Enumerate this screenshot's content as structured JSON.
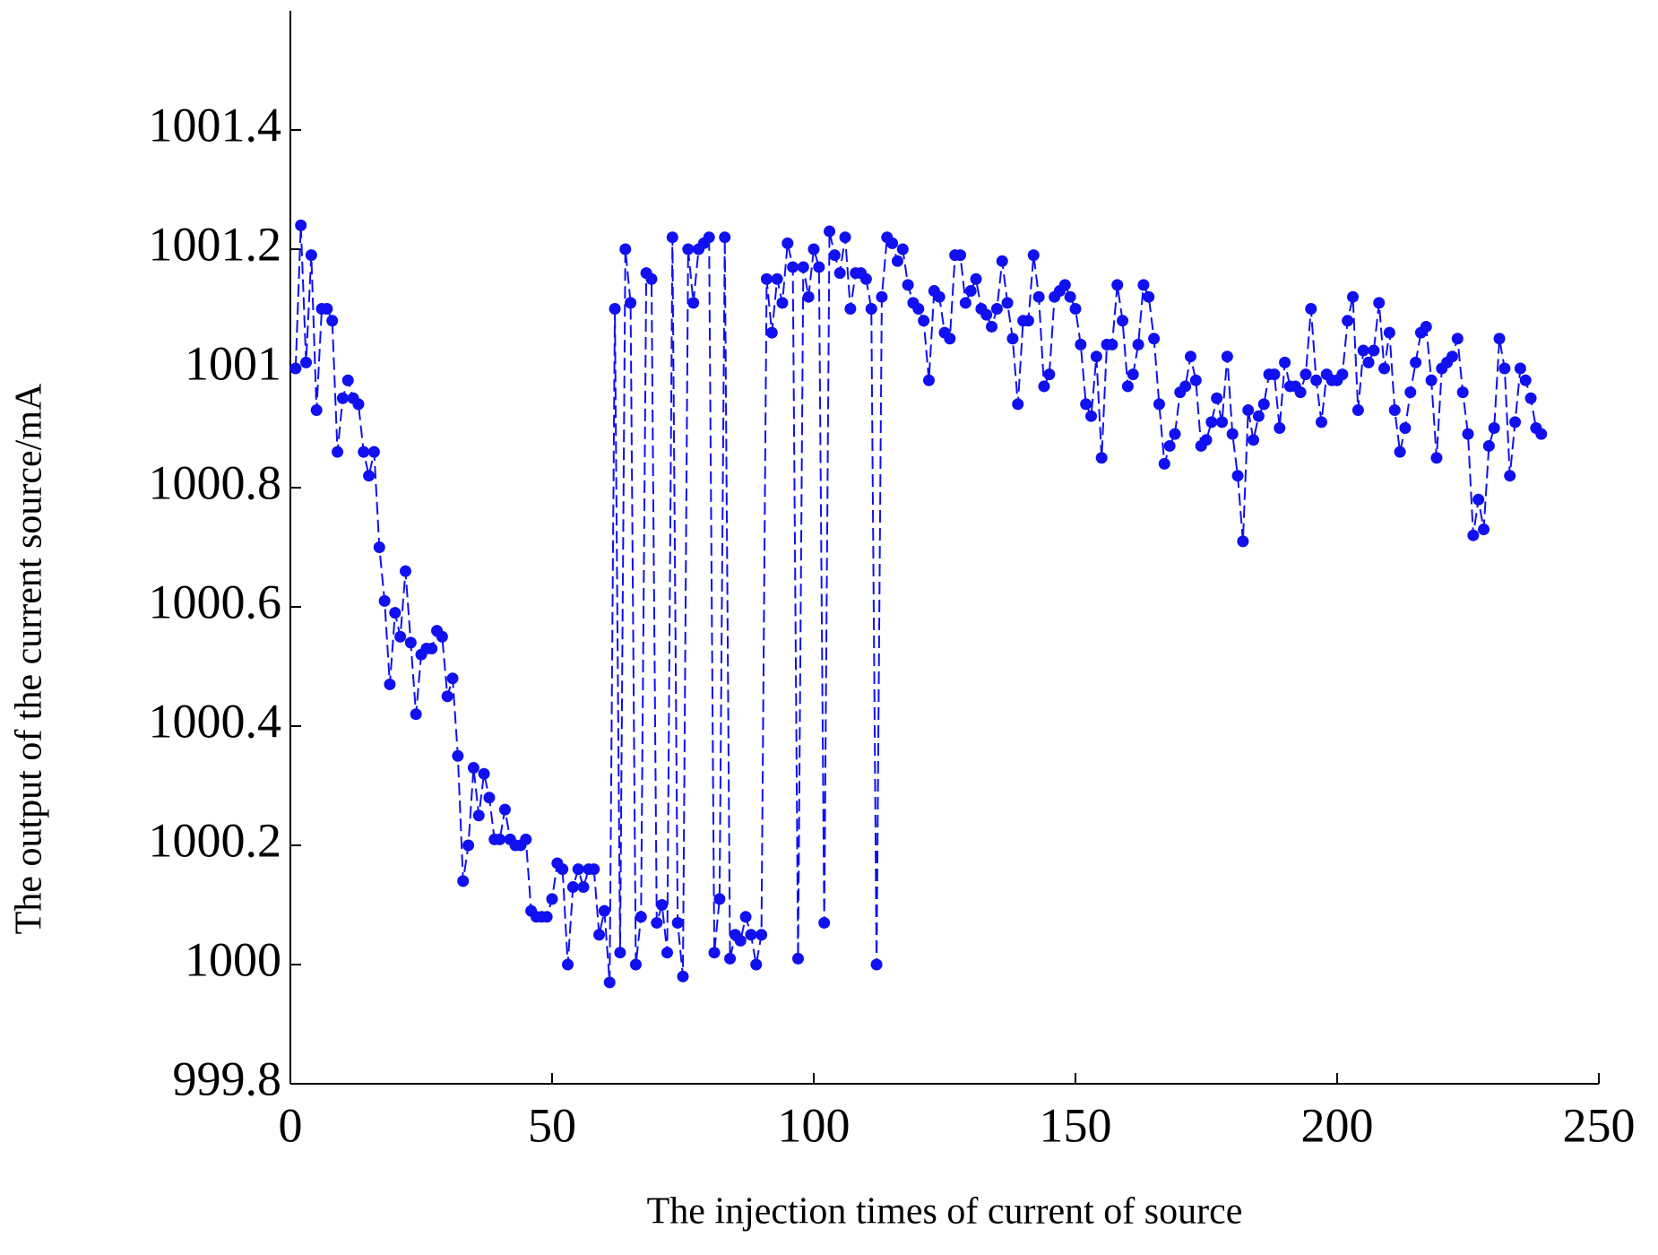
{
  "chart_data": {
    "type": "line",
    "xlabel": "The injection times of current of source",
    "ylabel": "The output of the current source/mA",
    "xlim": [
      0,
      250
    ],
    "xticks": [
      0,
      50,
      100,
      150,
      200,
      250
    ],
    "ylim": [
      999.8,
      1001.6
    ],
    "yticks": [
      999.8,
      1000,
      1000.2,
      1000.4,
      1000.6,
      1000.8,
      1001,
      1001.2,
      1001.4
    ],
    "line_style": "dashed",
    "marker": "circle",
    "series": [
      {
        "color": "#1010f0",
        "x": [
          1,
          2,
          3,
          4,
          5,
          6,
          7,
          8,
          9,
          10,
          11,
          12,
          13,
          14,
          15,
          16,
          17,
          18,
          19,
          20,
          21,
          22,
          23,
          24,
          25,
          26,
          27,
          28,
          29,
          30,
          31,
          32,
          33,
          34,
          35,
          36,
          37,
          38,
          39,
          40,
          41,
          42,
          43,
          44,
          45,
          46,
          47,
          48,
          49,
          50,
          51,
          52,
          53,
          54,
          55,
          56,
          57,
          58,
          59,
          60,
          61,
          62,
          63,
          64,
          65,
          66,
          67,
          68,
          69,
          70,
          71,
          72,
          73,
          74,
          75,
          76,
          77,
          78,
          79,
          80,
          81,
          82,
          83,
          84,
          85,
          86,
          87,
          88,
          89,
          90,
          91,
          92,
          93,
          94,
          95,
          96,
          97,
          98,
          99,
          100,
          101,
          102,
          103,
          104,
          105,
          106,
          107,
          108,
          109,
          110,
          111,
          112,
          113,
          114,
          115,
          116,
          117,
          118,
          119,
          120,
          121,
          122,
          123,
          124,
          125,
          126,
          127,
          128,
          129,
          130,
          131,
          132,
          133,
          134,
          135,
          136,
          137,
          138,
          139,
          140,
          141,
          142,
          143,
          144,
          145,
          146,
          147,
          148,
          149,
          150,
          151,
          152,
          153,
          154,
          155,
          156,
          157,
          158,
          159,
          160,
          161,
          162,
          163,
          164,
          165,
          166,
          167,
          168,
          169,
          170,
          171,
          172,
          173,
          174,
          175,
          176,
          177,
          178,
          179,
          180,
          181,
          182,
          183,
          184,
          185,
          186,
          187,
          188,
          189,
          190,
          191,
          192,
          193,
          194,
          195,
          196,
          197,
          198,
          199,
          200,
          201,
          202,
          203,
          204,
          205,
          206,
          207,
          208,
          209,
          210,
          211,
          212,
          213,
          214,
          215,
          216,
          217,
          218,
          219,
          220,
          221,
          222,
          223,
          224,
          225,
          226,
          227,
          228,
          229,
          230,
          231,
          232,
          233,
          234,
          235,
          236,
          237,
          238,
          239
        ],
        "values": [
          1001.0,
          1001.24,
          1001.01,
          1001.19,
          1000.93,
          1001.1,
          1001.1,
          1001.08,
          1000.86,
          1000.95,
          1000.98,
          1000.95,
          1000.94,
          1000.86,
          1000.82,
          1000.86,
          1000.7,
          1000.61,
          1000.47,
          1000.59,
          1000.55,
          1000.66,
          1000.54,
          1000.42,
          1000.52,
          1000.53,
          1000.53,
          1000.56,
          1000.55,
          1000.45,
          1000.48,
          1000.35,
          1000.14,
          1000.2,
          1000.33,
          1000.25,
          1000.32,
          1000.28,
          1000.21,
          1000.21,
          1000.26,
          1000.21,
          1000.2,
          1000.2,
          1000.21,
          1000.09,
          1000.08,
          1000.08,
          1000.08,
          1000.11,
          1000.17,
          1000.16,
          1000.0,
          1000.13,
          1000.16,
          1000.13,
          1000.16,
          1000.16,
          1000.05,
          1000.09,
          999.97,
          1001.1,
          1000.02,
          1001.2,
          1001.11,
          1000.0,
          1000.08,
          1001.16,
          1001.15,
          1000.07,
          1000.1,
          1000.02,
          1001.22,
          1000.07,
          999.98,
          1001.2,
          1001.11,
          1001.2,
          1001.21,
          1001.22,
          1000.02,
          1000.11,
          1001.22,
          1000.01,
          1000.05,
          1000.04,
          1000.08,
          1000.05,
          1000.0,
          1000.05,
          1001.15,
          1001.06,
          1001.15,
          1001.11,
          1001.21,
          1001.17,
          1000.01,
          1001.17,
          1001.12,
          1001.2,
          1001.17,
          1000.07,
          1001.23,
          1001.19,
          1001.16,
          1001.22,
          1001.1,
          1001.16,
          1001.16,
          1001.15,
          1001.1,
          1000.0,
          1001.12,
          1001.22,
          1001.21,
          1001.18,
          1001.2,
          1001.14,
          1001.11,
          1001.1,
          1001.08,
          1000.98,
          1001.13,
          1001.12,
          1001.06,
          1001.05,
          1001.19,
          1001.19,
          1001.11,
          1001.13,
          1001.15,
          1001.1,
          1001.09,
          1001.07,
          1001.1,
          1001.18,
          1001.11,
          1001.05,
          1000.94,
          1001.08,
          1001.08,
          1001.19,
          1001.12,
          1000.97,
          1000.99,
          1001.12,
          1001.13,
          1001.14,
          1001.12,
          1001.1,
          1001.04,
          1000.94,
          1000.92,
          1001.02,
          1000.85,
          1001.04,
          1001.04,
          1001.14,
          1001.08,
          1000.97,
          1000.99,
          1001.04,
          1001.14,
          1001.12,
          1001.05,
          1000.94,
          1000.84,
          1000.87,
          1000.89,
          1000.96,
          1000.97,
          1001.02,
          1000.98,
          1000.87,
          1000.88,
          1000.91,
          1000.95,
          1000.91,
          1001.02,
          1000.89,
          1000.82,
          1000.71,
          1000.93,
          1000.88,
          1000.92,
          1000.94,
          1000.99,
          1000.99,
          1000.9,
          1001.01,
          1000.97,
          1000.97,
          1000.96,
          1000.99,
          1001.1,
          1000.98,
          1000.91,
          1000.99,
          1000.98,
          1000.98,
          1000.99,
          1001.08,
          1001.12,
          1000.93,
          1001.03,
          1001.01,
          1001.03,
          1001.11,
          1001.0,
          1001.06,
          1000.93,
          1000.86,
          1000.9,
          1000.96,
          1001.01,
          1001.06,
          1001.07,
          1000.98,
          1000.85,
          1001.0,
          1001.01,
          1001.02,
          1001.05,
          1000.96,
          1000.89,
          1000.72,
          1000.78,
          1000.73,
          1000.87,
          1000.9,
          1001.05,
          1001.0,
          1000.82,
          1000.91,
          1001.0,
          1000.98,
          1000.95,
          1000.9,
          1000.89
        ]
      }
    ]
  }
}
